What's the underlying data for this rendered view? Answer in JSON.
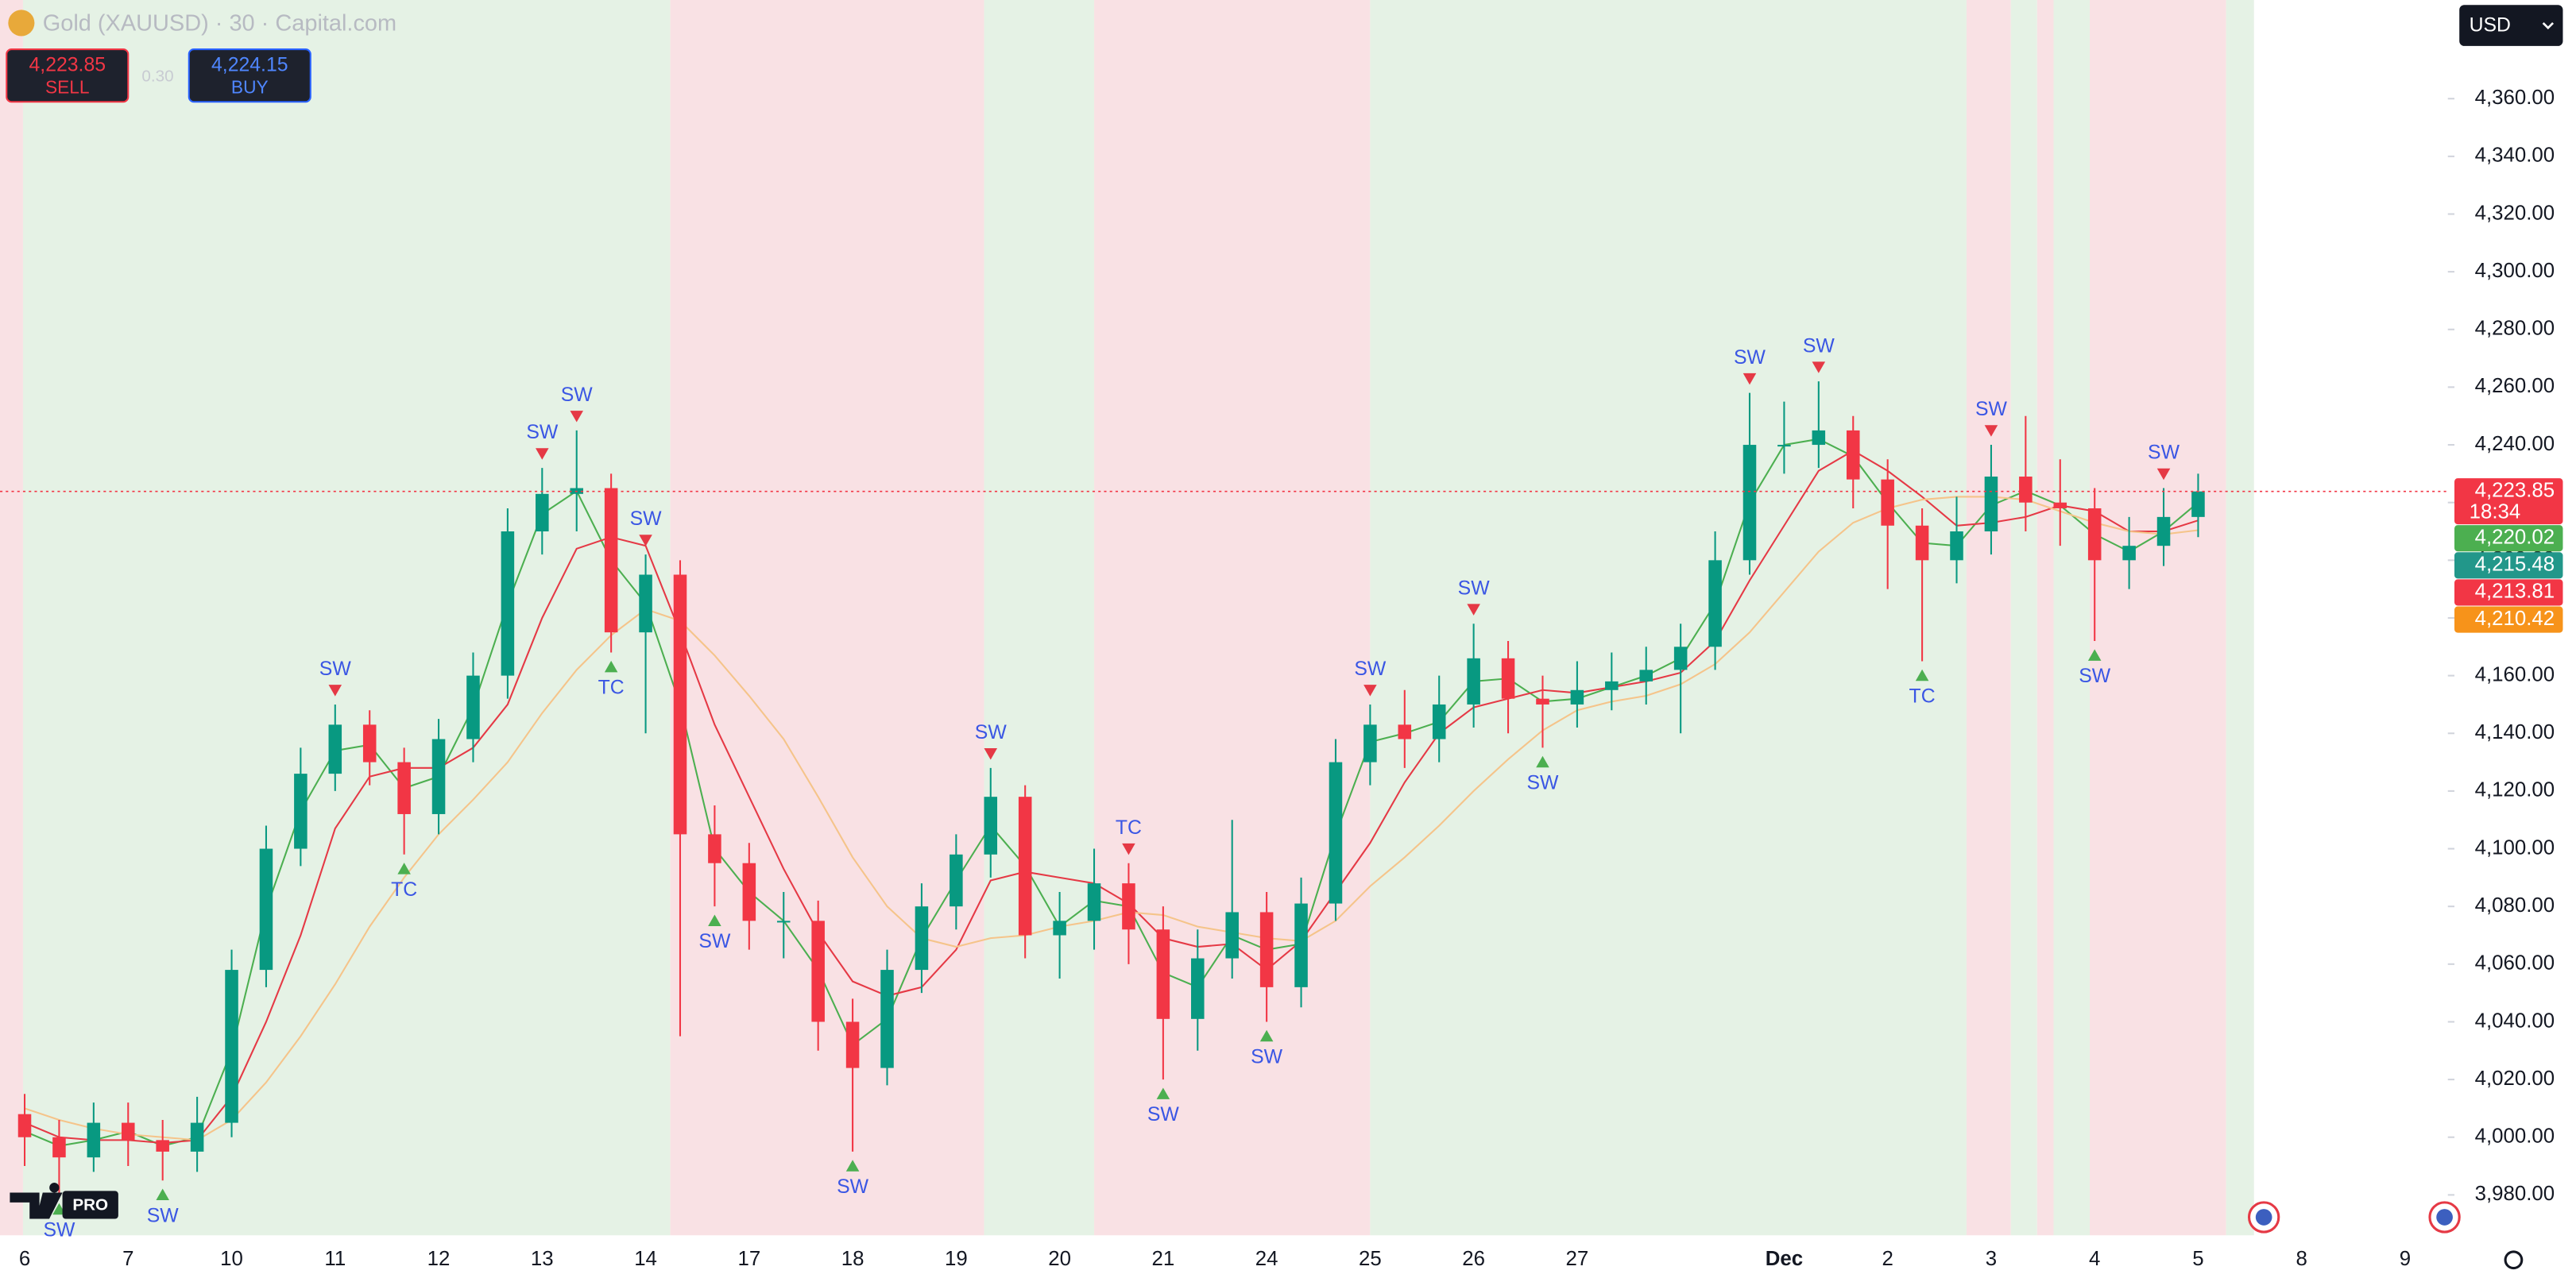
{
  "toolbar": {
    "symbol_title": "Gold (XAUUSD) · 30 · Capital.com",
    "sell": {
      "price": "4,223.85",
      "label": "SELL"
    },
    "spread": "0.30",
    "buy": {
      "price": "4,224.15",
      "label": "BUY"
    },
    "currency": "USD",
    "logo_badge": "PRO"
  },
  "chart_data": {
    "type": "candlestick",
    "categories": [
      "6",
      null,
      null,
      "7",
      null,
      null,
      "10",
      null,
      null,
      "11",
      null,
      null,
      "12",
      null,
      null,
      "13",
      null,
      null,
      "14",
      null,
      null,
      "17",
      null,
      null,
      "18",
      null,
      null,
      "19",
      null,
      null,
      "20",
      null,
      null,
      "21",
      null,
      null,
      "24",
      null,
      null,
      "25",
      null,
      null,
      "26",
      null,
      null,
      "27",
      null,
      null,
      null,
      null,
      null,
      "Dec",
      null,
      null,
      "2",
      null,
      null,
      "3",
      null,
      null,
      "4",
      null,
      null,
      "5",
      null,
      null,
      "8",
      null,
      null,
      "9",
      null
    ],
    "open": [
      4008,
      4000,
      3993,
      4005,
      3999,
      3995,
      4005,
      4058,
      4100,
      4126,
      4143,
      4130,
      4112,
      4138,
      4160,
      4210,
      4223,
      4225,
      4175,
      4195,
      4105,
      4095,
      4075,
      4075,
      4040,
      4024,
      4058,
      4080,
      4098,
      4118,
      4070,
      4075,
      4088,
      4072,
      4041,
      4062,
      4078,
      4052,
      4081,
      4130,
      4143,
      4138,
      4150,
      4166,
      4152,
      4150,
      4155,
      4158,
      4162,
      4170,
      4200,
      4240,
      4240,
      4245,
      4228,
      4212,
      4200,
      4210,
      4229,
      4220,
      4218,
      4200,
      4205,
      4215,
      null,
      null,
      null,
      null,
      null,
      null,
      null
    ],
    "high": [
      4015,
      4006,
      4012,
      4012,
      4006,
      4014,
      4065,
      4108,
      4135,
      4150,
      4148,
      4135,
      4145,
      4168,
      4218,
      4232,
      4245,
      4230,
      4202,
      4200,
      4115,
      4102,
      4085,
      4082,
      4048,
      4065,
      4088,
      4105,
      4128,
      4122,
      4085,
      4100,
      4095,
      4080,
      4072,
      4110,
      4085,
      4090,
      4138,
      4150,
      4155,
      4160,
      4178,
      4172,
      4160,
      4165,
      4168,
      4170,
      4178,
      4210,
      4258,
      4255,
      4262,
      4250,
      4235,
      4218,
      4222,
      4240,
      4250,
      4235,
      4225,
      4215,
      4225,
      4230,
      null,
      null,
      null,
      null,
      null,
      null,
      null
    ],
    "low": [
      3990,
      3980,
      3988,
      3990,
      3985,
      3988,
      4000,
      4052,
      4094,
      4120,
      4122,
      4098,
      4105,
      4130,
      4152,
      4202,
      4210,
      4168,
      4140,
      4035,
      4080,
      4065,
      4062,
      4030,
      3995,
      4018,
      4050,
      4072,
      4090,
      4062,
      4055,
      4065,
      4060,
      4020,
      4030,
      4055,
      4040,
      4045,
      4075,
      4122,
      4128,
      4130,
      4142,
      4140,
      4135,
      4142,
      4148,
      4150,
      4140,
      4162,
      4195,
      4230,
      4232,
      4218,
      4190,
      4165,
      4192,
      4202,
      4210,
      4205,
      4172,
      4190,
      4198,
      4208,
      null,
      null,
      null,
      null,
      null,
      null,
      null
    ],
    "close": [
      4000,
      3993,
      4005,
      3999,
      3995,
      4005,
      4058,
      4100,
      4126,
      4143,
      4130,
      4112,
      4138,
      4160,
      4210,
      4223,
      4225,
      4175,
      4195,
      4105,
      4095,
      4075,
      4075,
      4040,
      4024,
      4058,
      4080,
      4098,
      4118,
      4070,
      4075,
      4088,
      4072,
      4041,
      4062,
      4078,
      4052,
      4081,
      4130,
      4143,
      4138,
      4150,
      4166,
      4152,
      4150,
      4155,
      4158,
      4162,
      4170,
      4200,
      4240,
      4240,
      4245,
      4228,
      4212,
      4200,
      4210,
      4229,
      4220,
      4218,
      4200,
      4205,
      4215,
      4223.85,
      null,
      null,
      null,
      null,
      null,
      null,
      null
    ],
    "up_color": "#089981",
    "down_color": "#f23645",
    "series": [
      {
        "color": "#4caf50",
        "values": [
          4002,
          3997,
          3999,
          4002,
          3997,
          4000,
          4030,
          4079,
          4113,
          4134,
          4136,
          4121,
          4125,
          4149,
          4185,
          4216,
          4224,
          4200,
          4185,
          4150,
          4100,
          4085,
          4075,
          4058,
          4032,
          4041,
          4069,
          4089,
          4108,
          4094,
          4073,
          4082,
          4080,
          4057,
          4052,
          4070,
          4065,
          4067,
          4105,
          4137,
          4140,
          4144,
          4158,
          4159,
          4151,
          4152,
          4156,
          4160,
          4166,
          4185,
          4220,
          4240,
          4242,
          4236,
          4220,
          4206,
          4205,
          4219,
          4224,
          4219,
          4209,
          4203,
          4210,
          4220.02,
          null,
          null,
          null,
          null,
          null,
          null,
          null
        ]
      },
      {
        "color": "#e53945",
        "values": [
          4005,
          4000,
          3999,
          3999,
          3998,
          3999,
          4014,
          4040,
          4070,
          4107,
          4125,
          4128,
          4128,
          4135,
          4150,
          4180,
          4204,
          4208,
          4205,
          4175,
          4143,
          4118,
          4093,
          4071,
          4054,
          4049,
          4052,
          4065,
          4089,
          4092,
          4090,
          4088,
          4081,
          4069,
          4066,
          4067,
          4058,
          4068,
          4085,
          4102,
          4123,
          4140,
          4149,
          4152,
          4155,
          4154,
          4156,
          4158,
          4161,
          4172,
          4193,
          4212,
          4231,
          4238,
          4231,
          4222,
          4212,
          4213,
          4215,
          4219,
          4217,
          4210,
          4210,
          4213.81,
          null,
          null,
          null,
          null,
          null,
          null,
          null
        ]
      },
      {
        "color": "#f5c48a",
        "values": [
          4010,
          4006,
          4003,
          4001,
          4000,
          3999,
          4006,
          4019,
          4035,
          4053,
          4073,
          4090,
          4105,
          4117,
          4130,
          4147,
          4162,
          4174,
          4183,
          4179,
          4167,
          4153,
          4138,
          4118,
          4097,
          4080,
          4069,
          4066,
          4069,
          4070,
          4073,
          4075,
          4078,
          4077,
          4073,
          4071,
          4069,
          4068,
          4075,
          4087,
          4097,
          4108,
          4120,
          4131,
          4141,
          4148,
          4151,
          4153,
          4157,
          4164,
          4175,
          4189,
          4203,
          4213,
          4218,
          4221,
          4222,
          4222,
          4221,
          4217,
          4213,
          4210,
          4209,
          4210.42,
          null,
          null,
          null,
          null,
          null,
          null,
          null
        ]
      }
    ],
    "signals_above": [
      null,
      null,
      null,
      null,
      null,
      null,
      null,
      null,
      null,
      "SW",
      null,
      null,
      null,
      null,
      null,
      "SW",
      "SW",
      null,
      "SW",
      null,
      null,
      null,
      null,
      null,
      null,
      null,
      null,
      null,
      "SW",
      null,
      null,
      null,
      "TC",
      null,
      null,
      null,
      null,
      null,
      null,
      "SW",
      null,
      null,
      "SW",
      null,
      null,
      null,
      null,
      null,
      null,
      null,
      "SW",
      null,
      "SW",
      null,
      null,
      null,
      null,
      "SW",
      null,
      null,
      null,
      null,
      "SW",
      null,
      null,
      null,
      null,
      null,
      null,
      null,
      null
    ],
    "signals_below": [
      null,
      "SW",
      null,
      null,
      "SW",
      null,
      null,
      null,
      null,
      null,
      null,
      "TC",
      null,
      null,
      null,
      null,
      null,
      "TC",
      null,
      null,
      "SW",
      null,
      null,
      null,
      "SW",
      null,
      null,
      null,
      null,
      null,
      null,
      null,
      null,
      "SW",
      null,
      null,
      "SW",
      null,
      null,
      null,
      null,
      null,
      null,
      null,
      "SW",
      null,
      null,
      null,
      null,
      null,
      null,
      null,
      null,
      null,
      null,
      "TC",
      null,
      null,
      null,
      null,
      "SW",
      null,
      null,
      null,
      null,
      null,
      null,
      null,
      null,
      null,
      null
    ],
    "ylim": [
      3966,
      4394.2
    ],
    "yticks": [
      {
        "value": 3980,
        "label": "3,980.00"
      },
      {
        "value": 4000,
        "label": "4,000.00"
      },
      {
        "value": 4020,
        "label": "4,020.00"
      },
      {
        "value": 4040,
        "label": "4,040.00"
      },
      {
        "value": 4060,
        "label": "4,060.00"
      },
      {
        "value": 4080,
        "label": "4,080.00"
      },
      {
        "value": 4100,
        "label": "4,100.00"
      },
      {
        "value": 4120,
        "label": "4,120.00"
      },
      {
        "value": 4140,
        "label": "4,140.00"
      },
      {
        "value": 4160,
        "label": "4,160.00"
      },
      {
        "value": 4180,
        "label": "4,180.00"
      },
      {
        "value": 4200,
        "label": "4,200.00"
      },
      {
        "value": 4220,
        "label": "4,220.00"
      },
      {
        "value": 4240,
        "label": "4,240.00"
      },
      {
        "value": 4260,
        "label": "4,260.00"
      },
      {
        "value": 4280,
        "label": "4,280.00"
      },
      {
        "value": 4300,
        "label": "4,300.00"
      },
      {
        "value": 4320,
        "label": "4,320.00"
      },
      {
        "value": 4340,
        "label": "4,340.00"
      },
      {
        "value": 4360,
        "label": "4,360.00"
      }
    ],
    "price_labels": [
      {
        "value": 4223.85,
        "label": "4,223.85",
        "color": "#f23645",
        "countdown": "18:34"
      },
      {
        "value": 4220.02,
        "label": "4,220.02",
        "color": "#4caf50"
      },
      {
        "value": 4215.48,
        "label": "4,215.48",
        "color": "#22978a"
      },
      {
        "value": 4213.81,
        "label": "4,213.81",
        "color": "#f23645"
      },
      {
        "value": 4210.42,
        "label": "4,210.42",
        "color": "#f7931a"
      }
    ]
  }
}
